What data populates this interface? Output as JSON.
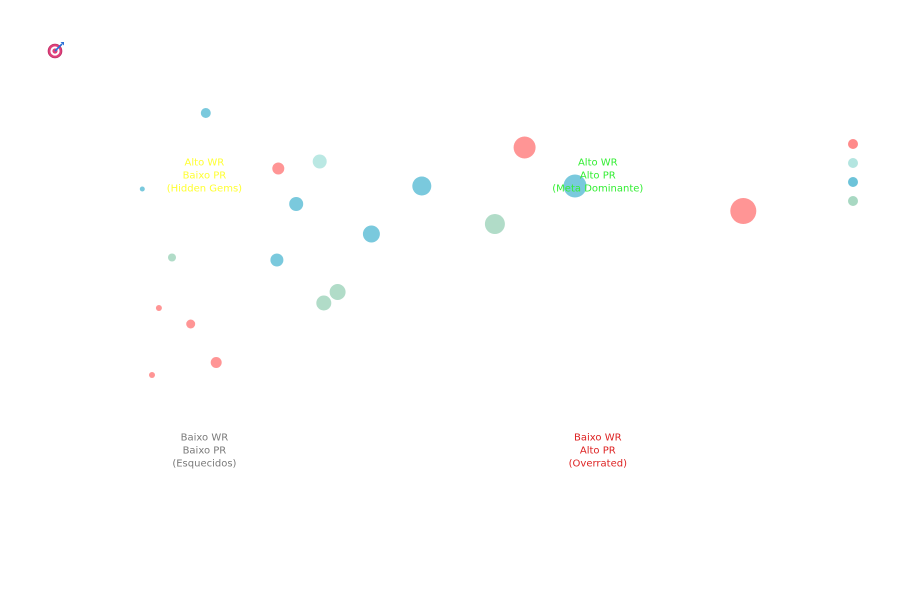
{
  "title_icon": "target-dart-icon",
  "chart_data": {
    "type": "scatter",
    "title": "",
    "xlabel": "",
    "ylabel": "",
    "xlim": [
      0,
      100
    ],
    "ylim": [
      0,
      100
    ],
    "grid": false,
    "legend_position": "top-right",
    "series": [
      {
        "color": "#ff8a8a",
        "points": [
          {
            "x": 56.9,
            "y": 84.1,
            "size": 11
          },
          {
            "x": 88.6,
            "y": 71.4,
            "size": 13
          },
          {
            "x": 21.2,
            "y": 79.9,
            "size": 6
          },
          {
            "x": 3.9,
            "y": 52.0,
            "size": 3
          },
          {
            "x": 8.5,
            "y": 48.8,
            "size": 4.5
          },
          {
            "x": 12.2,
            "y": 41.1,
            "size": 5.5
          },
          {
            "x": 2.9,
            "y": 38.6,
            "size": 3
          }
        ]
      },
      {
        "color": "#b3e5e0",
        "points": [
          {
            "x": 27.2,
            "y": 81.3,
            "size": 7
          }
        ]
      },
      {
        "color": "#6cc3d9",
        "points": [
          {
            "x": 10.7,
            "y": 91.0,
            "size": 5
          },
          {
            "x": 64.2,
            "y": 76.4,
            "size": 11.5
          },
          {
            "x": 42.0,
            "y": 76.4,
            "size": 9.5
          },
          {
            "x": 23.8,
            "y": 72.8,
            "size": 7
          },
          {
            "x": 34.7,
            "y": 66.8,
            "size": 8.5
          },
          {
            "x": 21.0,
            "y": 61.6,
            "size": 6.5
          },
          {
            "x": 1.5,
            "y": 75.8,
            "size": 2.5
          }
        ]
      },
      {
        "color": "#a8d8c2",
        "points": [
          {
            "x": 52.6,
            "y": 68.8,
            "size": 10
          },
          {
            "x": 29.8,
            "y": 55.2,
            "size": 8
          },
          {
            "x": 27.8,
            "y": 53.0,
            "size": 7.5
          },
          {
            "x": 5.8,
            "y": 62.1,
            "size": 4
          }
        ]
      }
    ],
    "annotations": [
      {
        "text": [
          "Alto WR",
          "Baixo PR",
          "(Hidden Gems)"
        ],
        "color": "#ffff33",
        "x": 10.5,
        "y": 80.5
      },
      {
        "text": [
          "Alto WR",
          "Alto PR",
          "(Meta Dominante)"
        ],
        "color": "#33ee33",
        "x": 67.5,
        "y": 80.5
      },
      {
        "text": [
          "Baixo WR",
          "Baixo PR",
          "(Esquecidos)"
        ],
        "color": "#7a7a7a",
        "x": 10.5,
        "y": 25.5
      },
      {
        "text": [
          "Baixo WR",
          "Alto PR",
          "(Overrated)"
        ],
        "color": "#dd2222",
        "x": 67.5,
        "y": 25.5
      }
    ],
    "legend": [
      {
        "color": "#ff8a8a"
      },
      {
        "color": "#b3e5e0"
      },
      {
        "color": "#6cc3d9"
      },
      {
        "color": "#a8d8c2"
      }
    ]
  }
}
